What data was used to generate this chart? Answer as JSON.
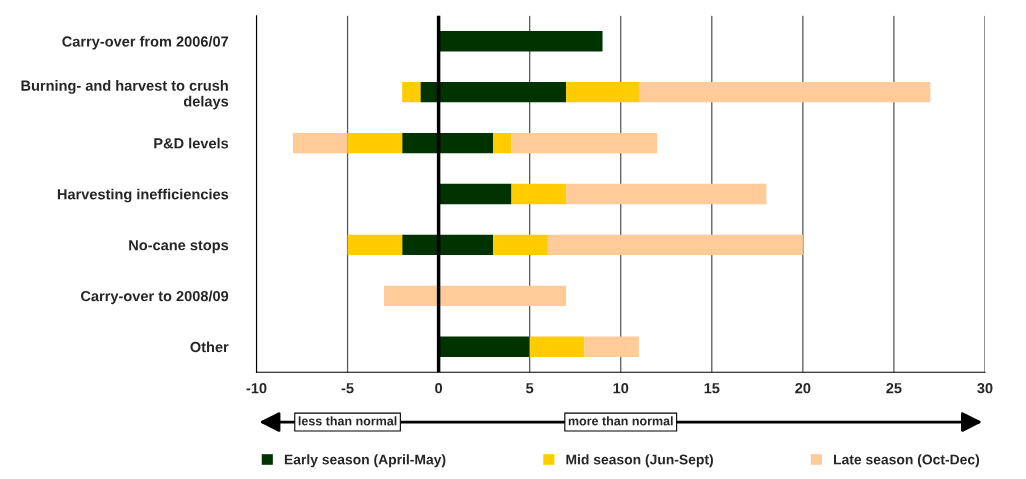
{
  "chart_data": {
    "type": "bar",
    "orientation": "horizontal",
    "stacked": true,
    "categories": [
      "Carry-over from 2006/07",
      "Burning- and harvest to crush delays",
      "P&D levels",
      "Harvesting inefficiencies",
      "No-cane stops",
      "Carry-over to 2008/09",
      "Other"
    ],
    "series": [
      {
        "color": "#003300",
        "values": [
          null,
          -1,
          -2,
          null,
          -2,
          null,
          null
        ]
      },
      {
        "color": "#ffcc00",
        "values": [
          null,
          -1,
          -3,
          null,
          -3,
          null,
          null
        ]
      },
      {
        "color": "#ffcc99",
        "values": [
          null,
          null,
          -3,
          null,
          null,
          -3,
          null
        ]
      },
      {
        "name": "Early season (April-May)",
        "color": "#003300",
        "values": [
          9,
          7,
          3,
          4,
          3,
          null,
          5
        ]
      },
      {
        "name": "Mid season (Jun-Sept)",
        "color": "#ffcc00",
        "values": [
          null,
          4,
          1,
          3,
          3,
          null,
          3
        ]
      },
      {
        "name": "Late season (Oct-Dec)",
        "color": "#ffcc99",
        "values": [
          null,
          16,
          8,
          11,
          14,
          7,
          3
        ]
      }
    ],
    "xlim": [
      -10,
      30
    ],
    "xticks": [
      -10,
      -5,
      0,
      5,
      10,
      15,
      20,
      25,
      30
    ],
    "grid": "x",
    "legend": "bottom",
    "ref_lines": [
      {
        "axis": "x",
        "value": 0,
        "color": "#000000"
      }
    ],
    "annotations": [
      "less than normal",
      "more than normal"
    ]
  }
}
